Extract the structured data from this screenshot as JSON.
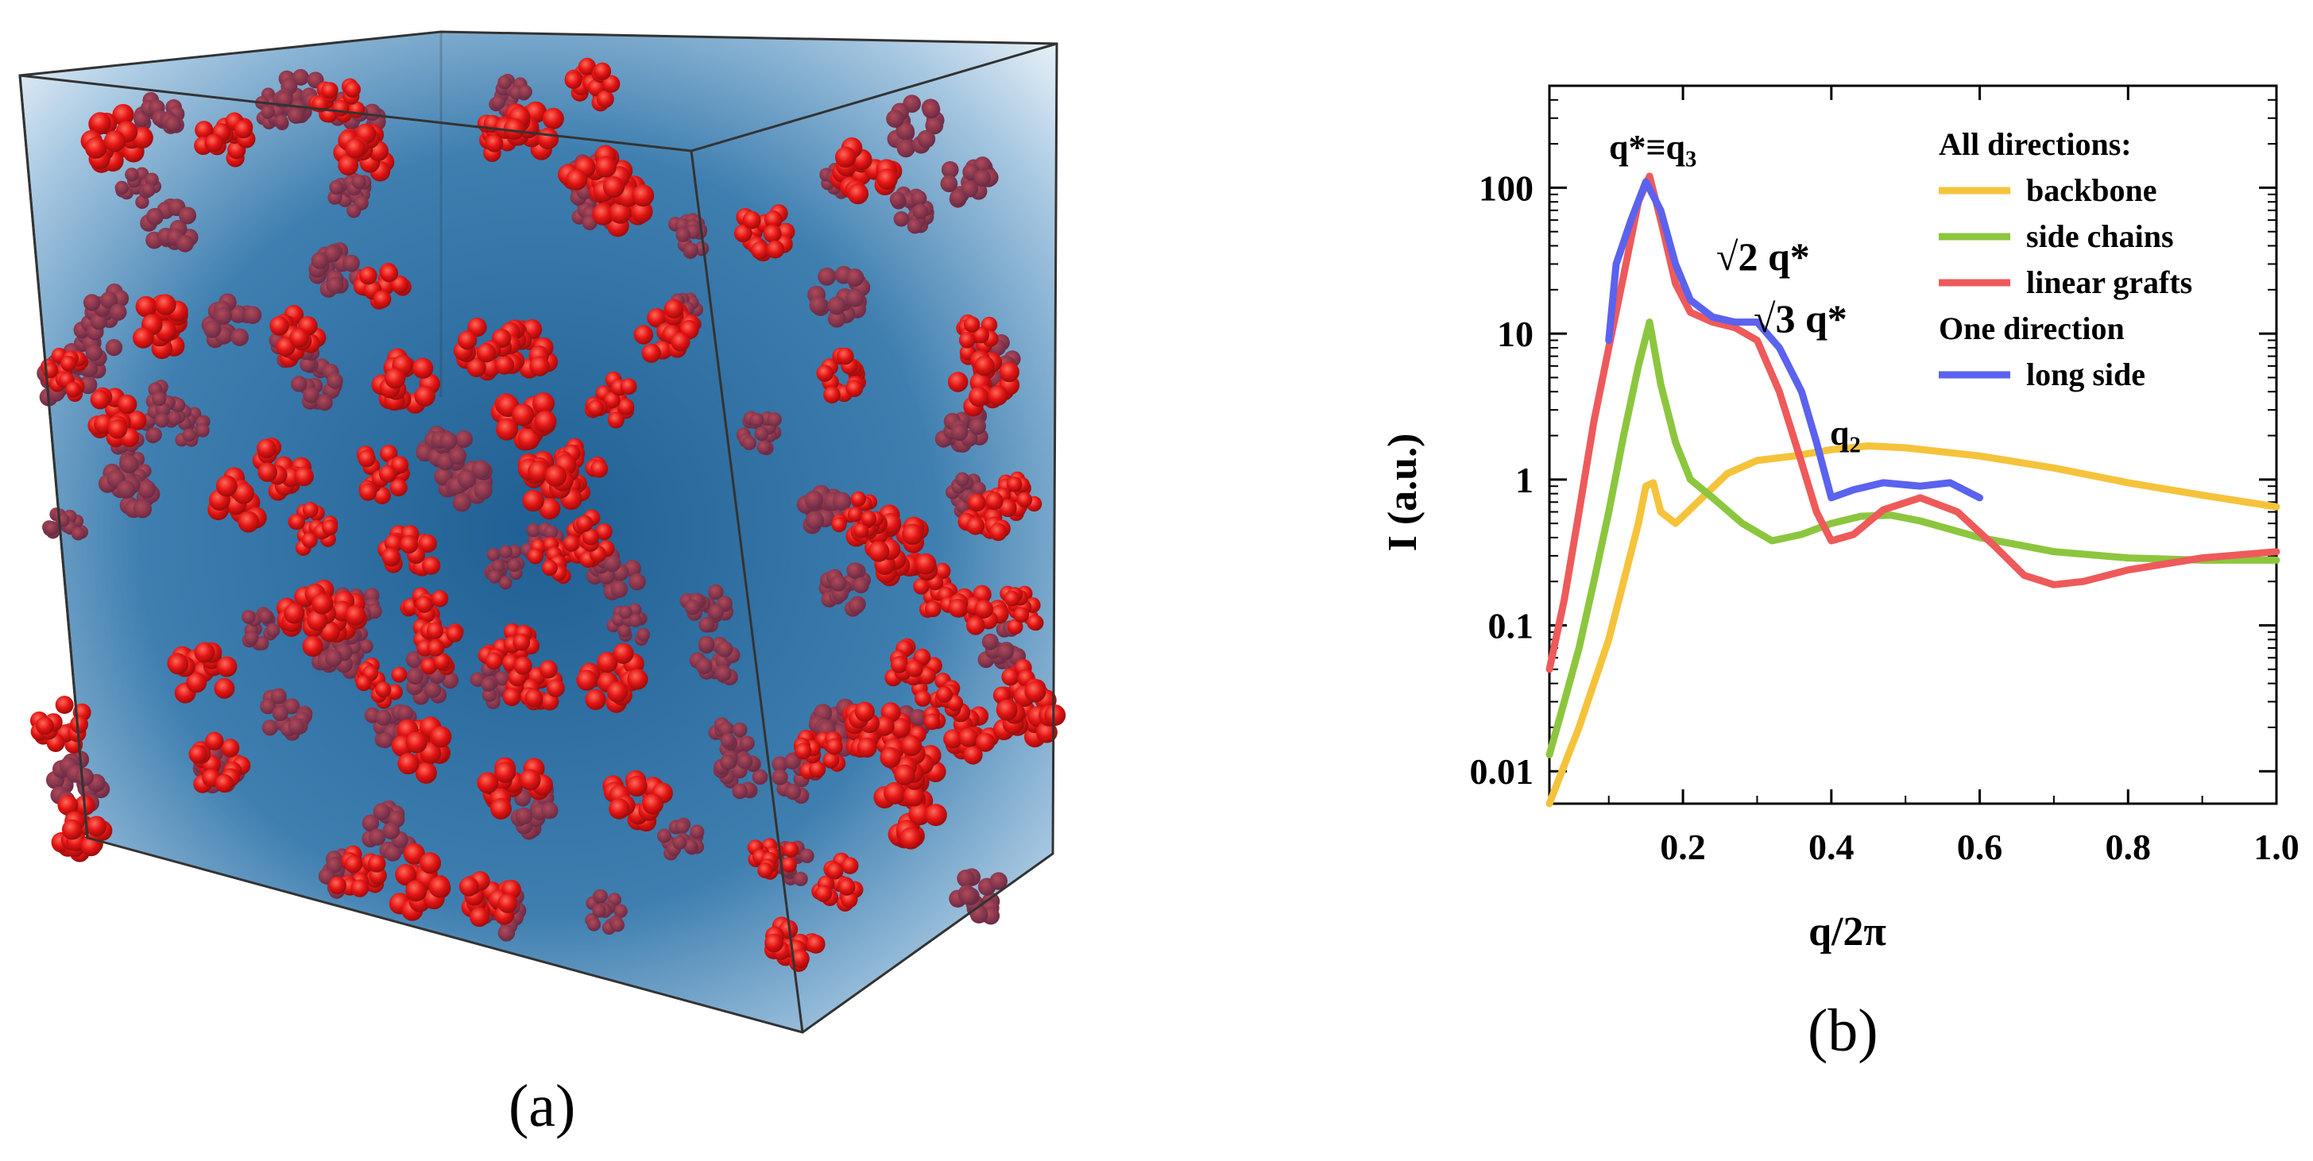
{
  "figure": {
    "panel_a_caption": "(a)",
    "panel_b_caption": "(b)",
    "panel_a_description_colors": {
      "micelle": "#ee1c1c",
      "matrix": "#2c6a9a",
      "edge": "#333333"
    }
  },
  "chart_data": {
    "type": "line",
    "ylog": true,
    "xlabel": "q/2π",
    "ylabel": "I (a.u.)",
    "xlim": [
      0.02,
      1.0
    ],
    "ylim": [
      0.006,
      500
    ],
    "xticks": [
      0.2,
      0.4,
      0.6,
      0.8,
      1.0
    ],
    "xtick_labels": [
      "0.2",
      "0.4",
      "0.6",
      "0.8",
      "1.0"
    ],
    "yticks": [
      0.01,
      0.1,
      1,
      10,
      100
    ],
    "ytick_labels": [
      "0.01",
      "0.1",
      "1",
      "10",
      "100"
    ],
    "legend": {
      "group1_title": "All directions:",
      "group2_title": "One direction",
      "entries": [
        {
          "label": "backbone",
          "color": "#f5c33b"
        },
        {
          "label": "side chains",
          "color": "#8cc63e"
        },
        {
          "label": "linear grafts",
          "color": "#ee5a5a"
        },
        {
          "label": "long side",
          "color": "#5b62ee"
        }
      ]
    },
    "annotations": {
      "peak": "q*≡q",
      "peak_sub": "3",
      "sqrt2": "√2 q*",
      "sqrt3": "√3 q*",
      "q2": "q",
      "q2_sub": "2"
    },
    "series": [
      {
        "name": "backbone",
        "color": "#f5c33b",
        "points": [
          [
            0.02,
            0.006
          ],
          [
            0.04,
            0.011
          ],
          [
            0.06,
            0.02
          ],
          [
            0.08,
            0.04
          ],
          [
            0.1,
            0.08
          ],
          [
            0.12,
            0.2
          ],
          [
            0.14,
            0.5
          ],
          [
            0.15,
            0.9
          ],
          [
            0.16,
            0.95
          ],
          [
            0.17,
            0.6
          ],
          [
            0.19,
            0.5
          ],
          [
            0.22,
            0.7
          ],
          [
            0.26,
            1.1
          ],
          [
            0.3,
            1.35
          ],
          [
            0.35,
            1.45
          ],
          [
            0.4,
            1.6
          ],
          [
            0.45,
            1.7
          ],
          [
            0.5,
            1.65
          ],
          [
            0.6,
            1.45
          ],
          [
            0.7,
            1.2
          ],
          [
            0.8,
            0.95
          ],
          [
            0.9,
            0.78
          ],
          [
            1.0,
            0.65
          ]
        ]
      },
      {
        "name": "side chains",
        "color": "#8cc63e",
        "points": [
          [
            0.02,
            0.013
          ],
          [
            0.04,
            0.03
          ],
          [
            0.06,
            0.07
          ],
          [
            0.08,
            0.2
          ],
          [
            0.1,
            0.6
          ],
          [
            0.12,
            2.0
          ],
          [
            0.14,
            6.0
          ],
          [
            0.155,
            12
          ],
          [
            0.17,
            4.5
          ],
          [
            0.19,
            1.8
          ],
          [
            0.21,
            1.0
          ],
          [
            0.24,
            0.75
          ],
          [
            0.28,
            0.5
          ],
          [
            0.32,
            0.38
          ],
          [
            0.36,
            0.42
          ],
          [
            0.4,
            0.5
          ],
          [
            0.44,
            0.56
          ],
          [
            0.48,
            0.57
          ],
          [
            0.52,
            0.52
          ],
          [
            0.6,
            0.4
          ],
          [
            0.7,
            0.32
          ],
          [
            0.8,
            0.29
          ],
          [
            0.9,
            0.28
          ],
          [
            1.0,
            0.28
          ]
        ]
      },
      {
        "name": "linear grafts",
        "color": "#ee5a5a",
        "points": [
          [
            0.02,
            0.05
          ],
          [
            0.04,
            0.15
          ],
          [
            0.06,
            0.6
          ],
          [
            0.08,
            2.5
          ],
          [
            0.1,
            8
          ],
          [
            0.12,
            25
          ],
          [
            0.14,
            80
          ],
          [
            0.155,
            120
          ],
          [
            0.17,
            60
          ],
          [
            0.19,
            22
          ],
          [
            0.21,
            14
          ],
          [
            0.24,
            12
          ],
          [
            0.27,
            11
          ],
          [
            0.3,
            9
          ],
          [
            0.33,
            4
          ],
          [
            0.36,
            1.3
          ],
          [
            0.38,
            0.6
          ],
          [
            0.4,
            0.38
          ],
          [
            0.43,
            0.42
          ],
          [
            0.47,
            0.62
          ],
          [
            0.52,
            0.75
          ],
          [
            0.57,
            0.6
          ],
          [
            0.62,
            0.35
          ],
          [
            0.66,
            0.22
          ],
          [
            0.7,
            0.19
          ],
          [
            0.74,
            0.2
          ],
          [
            0.8,
            0.24
          ],
          [
            0.9,
            0.29
          ],
          [
            1.0,
            0.32
          ]
        ]
      },
      {
        "name": "long side",
        "color": "#5b62ee",
        "points": [
          [
            0.1,
            9
          ],
          [
            0.11,
            30
          ],
          [
            0.13,
            60
          ],
          [
            0.15,
            110
          ],
          [
            0.17,
            70
          ],
          [
            0.19,
            30
          ],
          [
            0.21,
            17
          ],
          [
            0.24,
            13
          ],
          [
            0.27,
            12
          ],
          [
            0.3,
            12
          ],
          [
            0.33,
            8
          ],
          [
            0.36,
            4
          ],
          [
            0.38,
            1.8
          ],
          [
            0.4,
            0.75
          ],
          [
            0.43,
            0.85
          ],
          [
            0.47,
            0.95
          ],
          [
            0.52,
            0.9
          ],
          [
            0.56,
            0.95
          ],
          [
            0.6,
            0.75
          ]
        ]
      }
    ]
  }
}
